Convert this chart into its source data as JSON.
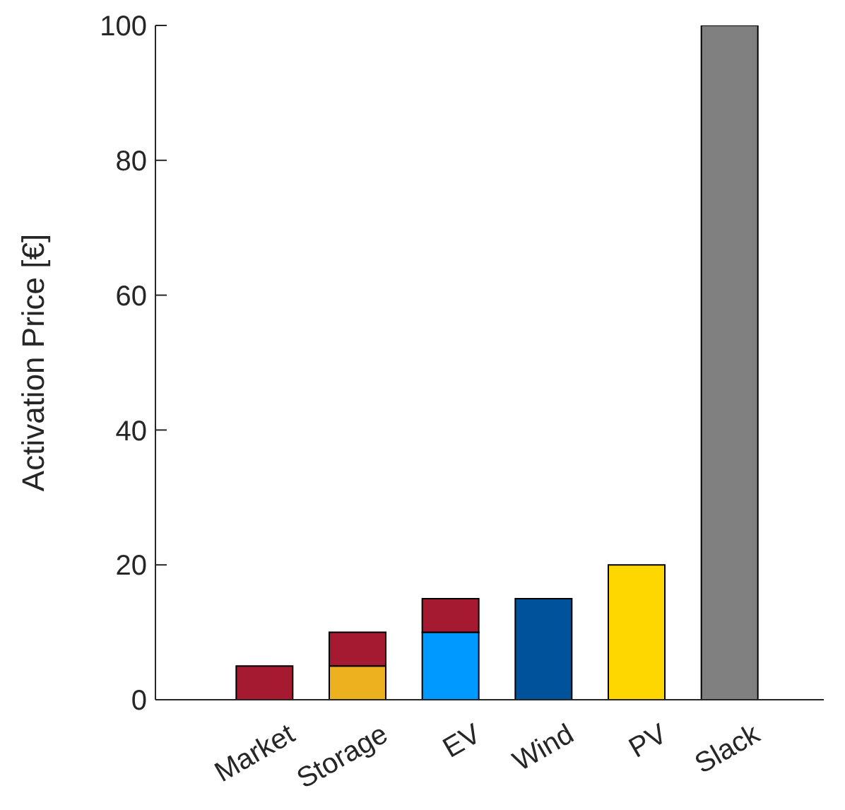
{
  "chart_data": {
    "type": "bar",
    "ylabel": "Activation Price [€]",
    "categories": [
      "Market",
      "Storage",
      "EV",
      "Wind",
      "PV",
      "Slack"
    ],
    "stacked": true,
    "series": [
      {
        "colors": [
          "#a51931",
          "#edb120",
          "#0099ff",
          "#00539a",
          "#ffd700",
          "#808080"
        ],
        "values": [
          5,
          5,
          10,
          15,
          20,
          100
        ]
      },
      {
        "colors": [
          "#a51931",
          "#a51931",
          "#a51931",
          "#a51931",
          "#a51931",
          "#a51931"
        ],
        "values": [
          null,
          5,
          5,
          null,
          null,
          null
        ]
      }
    ],
    "ylim": [
      0,
      100
    ],
    "yticks": [
      0,
      20,
      40,
      60,
      80,
      100
    ],
    "grid": false,
    "legend": false
  }
}
